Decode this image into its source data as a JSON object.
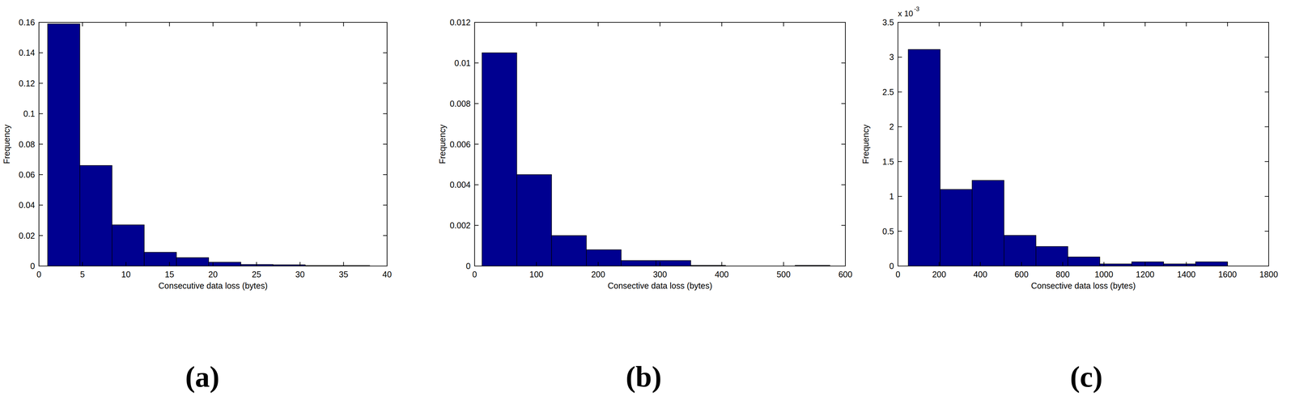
{
  "chart_data": [
    {
      "type": "histogram",
      "title": "(a)",
      "xlabel": "Consecutive data loss (bytes)",
      "ylabel": "Frequency",
      "bins": [
        1,
        4.7,
        8.4,
        12.1,
        15.8,
        19.5,
        23.2,
        26.9,
        30.6,
        34.3,
        38
      ],
      "values": [
        0.159,
        0.066,
        0.027,
        0.009,
        0.0055,
        0.0025,
        0.001,
        0.0008,
        0.0003,
        0.0003
      ],
      "color": "#000090",
      "xlim": [
        0,
        40
      ],
      "xticks": [
        0,
        5,
        10,
        15,
        20,
        25,
        30,
        35,
        40
      ],
      "ylim": [
        0,
        0.16
      ],
      "yticks": [
        0,
        0.02,
        0.04,
        0.06,
        0.08,
        0.1,
        0.12,
        0.14,
        0.16
      ],
      "grid": false
    },
    {
      "type": "histogram",
      "title": "(b)",
      "xlabel": "Consective data loss (bytes)",
      "ylabel": "Frequency",
      "bins": [
        12,
        68.3,
        124.6,
        180.9,
        237.2,
        293.5,
        349.8,
        406.1,
        462.4,
        518.7,
        575
      ],
      "values": [
        0.0105,
        0.0045,
        0.0015,
        0.0008,
        0.00027,
        0.00027,
        3e-05,
        0,
        0,
        3e-05
      ],
      "color": "#000090",
      "xlim": [
        0,
        600
      ],
      "xticks": [
        0,
        100,
        200,
        300,
        400,
        500,
        600
      ],
      "ylim": [
        0,
        0.012
      ],
      "yticks": [
        0,
        0.002,
        0.004,
        0.006,
        0.008,
        0.01,
        0.012
      ],
      "grid": false
    },
    {
      "type": "histogram",
      "title": "(c)",
      "xlabel": "Consective data loss (bytes)",
      "ylabel": "Frequency",
      "annotations": [
        {
          "text": "x 10",
          "superscript": "-3"
        }
      ],
      "bins": [
        50,
        205,
        360,
        515,
        670,
        825,
        980,
        1135,
        1290,
        1445,
        1600
      ],
      "values": [
        0.00311,
        0.0011,
        0.00123,
        0.00044,
        0.00028,
        0.00013,
        3e-05,
        6e-05,
        3e-05,
        6e-05
      ],
      "color": "#000090",
      "xlim": [
        0,
        1800
      ],
      "xticks": [
        0,
        200,
        400,
        600,
        800,
        1000,
        1200,
        1400,
        1600,
        1800
      ],
      "ylim": [
        0,
        0.0035
      ],
      "yticks": [
        {
          "value": 0,
          "label": "0"
        },
        {
          "value": 0.0005,
          "label": "0.5"
        },
        {
          "value": 0.001,
          "label": "1"
        },
        {
          "value": 0.0015,
          "label": "1.5"
        },
        {
          "value": 0.002,
          "label": "2"
        },
        {
          "value": 0.0025,
          "label": "2.5"
        },
        {
          "value": 0.003,
          "label": "3"
        },
        {
          "value": 0.0035,
          "label": "3.5"
        }
      ],
      "grid": false
    }
  ]
}
